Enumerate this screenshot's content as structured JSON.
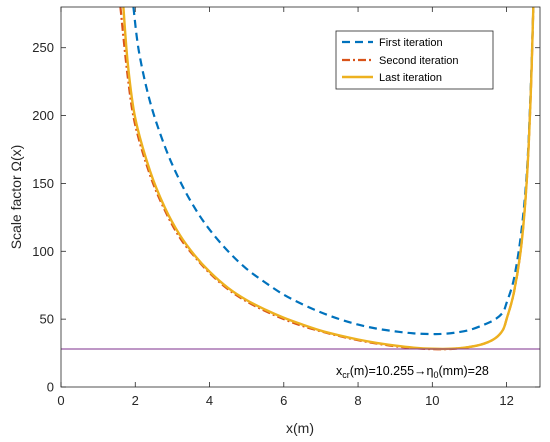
{
  "chart_data": {
    "type": "line",
    "title": "",
    "xlabel": "x(m)",
    "ylabel": "Scale factor Ω(x)",
    "xlim": [
      0,
      12.9
    ],
    "ylim": [
      0,
      280
    ],
    "xticks": [
      0,
      2,
      4,
      6,
      8,
      10,
      12
    ],
    "xtick_labels": [
      "0",
      "2",
      "4",
      "6",
      "8",
      "10",
      "12"
    ],
    "yticks": [
      0,
      50,
      100,
      150,
      200,
      250
    ],
    "ytick_labels": [
      "0",
      "50",
      "100",
      "150",
      "200",
      "250"
    ],
    "grid": false,
    "legend_position": "top-right",
    "series": [
      {
        "name": "First iteration",
        "color": "#0072BD",
        "line_style": "dashed",
        "x": [
          1.95,
          2.1,
          2.4,
          2.8,
          3.2,
          3.6,
          4.0,
          4.5,
          5.0,
          5.5,
          6.0,
          6.5,
          7.0,
          7.5,
          8.0,
          8.5,
          9.0,
          9.5,
          10.0,
          10.3,
          10.6,
          11.0,
          11.4,
          11.7,
          11.9,
          12.0,
          12.2,
          12.4,
          12.55,
          12.65,
          12.72
        ],
        "y": [
          280,
          247,
          210,
          177,
          152,
          132,
          116,
          100,
          87,
          77,
          68,
          61,
          55,
          50,
          46,
          43,
          41,
          39.5,
          39,
          39.2,
          40,
          42,
          46,
          50,
          55,
          62,
          80,
          115,
          160,
          220,
          280
        ]
      },
      {
        "name": "Second iteration",
        "color": "#D95319",
        "line_style": "dash-dot",
        "x": [
          1.6,
          1.8,
          2.0,
          2.4,
          2.8,
          3.2,
          3.6,
          4.0,
          4.5,
          5.0,
          5.5,
          6.0,
          6.5,
          7.0,
          7.5,
          8.0,
          8.5,
          9.0,
          9.5,
          10.0,
          10.5,
          11.0,
          11.4,
          11.7,
          11.9,
          12.0,
          12.2,
          12.4,
          12.55,
          12.65,
          12.72
        ],
        "y": [
          280,
          228,
          193,
          156,
          130,
          110,
          96,
          84,
          72,
          63,
          56,
          50,
          45,
          41,
          37.5,
          34.5,
          32,
          30,
          28.6,
          27.9,
          28,
          29.5,
          32,
          36,
          42,
          50,
          70,
          105,
          155,
          215,
          280
        ]
      },
      {
        "name": "Last iteration",
        "color": "#EDB120",
        "line_style": "solid",
        "x": [
          1.68,
          1.8,
          2.0,
          2.4,
          2.8,
          3.2,
          3.6,
          4.0,
          4.5,
          5.0,
          5.5,
          6.0,
          6.5,
          7.0,
          7.5,
          8.0,
          8.5,
          9.0,
          9.5,
          10.0,
          10.5,
          11.0,
          11.4,
          11.7,
          11.9,
          12.0,
          12.2,
          12.4,
          12.55,
          12.65,
          12.72
        ],
        "y": [
          280,
          238,
          198,
          159,
          132,
          112,
          97,
          85,
          73,
          64,
          57,
          51,
          46,
          41.5,
          38,
          35,
          32.5,
          30.5,
          29,
          28.2,
          28.2,
          29.5,
          32,
          36,
          42,
          50,
          70,
          105,
          155,
          215,
          280
        ]
      }
    ],
    "threshold": {
      "y": 28,
      "color": "#7E2F8E"
    },
    "annotation": {
      "x_text": "x",
      "x_sub": "cr",
      "middle_text": "(m)=10.255→",
      "eta": "η",
      "eta_sub": "0",
      "end_text": "(mm)=28"
    }
  }
}
